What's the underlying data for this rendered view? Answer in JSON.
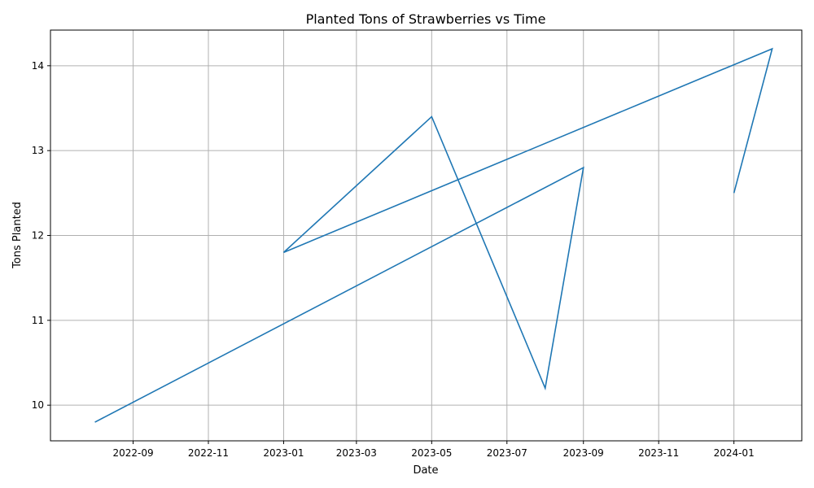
{
  "chart_data": {
    "type": "line",
    "title": "Planted Tons of Strawberries vs Time",
    "xlabel": "Date",
    "ylabel": "Tons Planted",
    "grid": true,
    "legend": "none",
    "x_axis": {
      "kind": "date",
      "range": [
        "2022-06-26",
        "2024-02-25"
      ],
      "ticks": [
        "2022-09-01",
        "2022-11-01",
        "2023-01-01",
        "2023-03-01",
        "2023-05-01",
        "2023-07-01",
        "2023-09-01",
        "2023-11-01",
        "2024-01-01"
      ],
      "tick_labels": [
        "2022-09",
        "2022-11",
        "2023-01",
        "2023-03",
        "2023-05",
        "2023-07",
        "2023-09",
        "2023-11",
        "2024-01"
      ]
    },
    "y_axis": {
      "range": [
        9.58,
        14.42
      ],
      "ticks": [
        10,
        11,
        12,
        13,
        14
      ],
      "tick_labels": [
        "10",
        "11",
        "12",
        "13",
        "14"
      ]
    },
    "series": [
      {
        "color": "#1f77b4",
        "x": [
          "2022-08-01",
          "2023-09-01",
          "2023-08-01",
          "2023-05-01",
          "2023-01-01",
          "2024-02-01",
          "2024-01-01"
        ],
        "y": [
          9.8,
          12.8,
          10.2,
          13.4,
          11.8,
          14.2,
          12.5
        ]
      }
    ]
  }
}
